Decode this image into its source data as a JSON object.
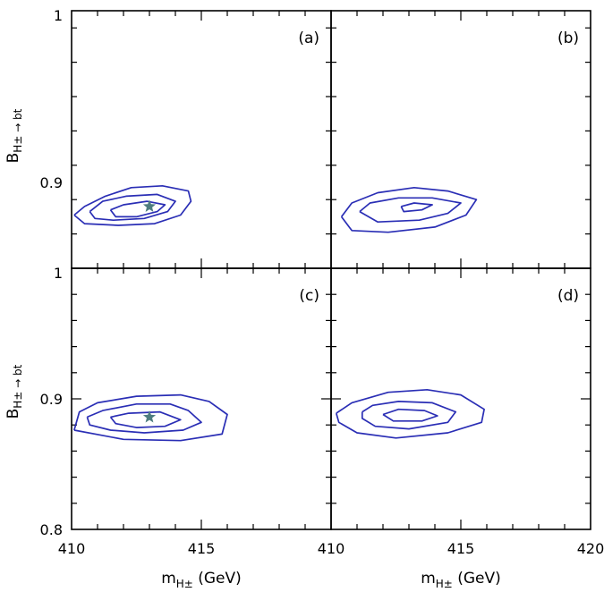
{
  "colors": {
    "contour": "#2a2eb5",
    "star": "#4e7d7f",
    "frame": "#000000"
  },
  "axes": {
    "x_label": "m",
    "x_label_sub": "H±",
    "x_label_unit": "(GeV)",
    "y_label": "B",
    "y_label_sub": "H± → bt"
  },
  "chart_data": [
    {
      "panel": "(a)",
      "type": "contour",
      "xlim": [
        410,
        420
      ],
      "ylim": [
        0.85,
        1.0
      ],
      "yticklabels": [
        "0.9",
        "1"
      ],
      "best_fit": [
        413,
        0.886
      ],
      "contours": [
        [
          [
            410.1,
            0.881
          ],
          [
            410.5,
            0.886
          ],
          [
            411.3,
            0.892
          ],
          [
            412.3,
            0.897
          ],
          [
            413.5,
            0.898
          ],
          [
            414.5,
            0.895
          ],
          [
            414.6,
            0.889
          ],
          [
            414.2,
            0.881
          ],
          [
            413.2,
            0.876
          ],
          [
            411.8,
            0.875
          ],
          [
            410.5,
            0.876
          ],
          [
            410.1,
            0.881
          ]
        ],
        [
          [
            410.7,
            0.883
          ],
          [
            411.2,
            0.889
          ],
          [
            412.1,
            0.892
          ],
          [
            413.3,
            0.893
          ],
          [
            414.0,
            0.889
          ],
          [
            413.7,
            0.883
          ],
          [
            412.8,
            0.879
          ],
          [
            411.6,
            0.878
          ],
          [
            410.9,
            0.879
          ],
          [
            410.7,
            0.883
          ]
        ],
        [
          [
            411.5,
            0.884
          ],
          [
            412.0,
            0.887
          ],
          [
            412.9,
            0.889
          ],
          [
            413.6,
            0.887
          ],
          [
            413.3,
            0.883
          ],
          [
            412.5,
            0.88
          ],
          [
            411.7,
            0.88
          ],
          [
            411.5,
            0.884
          ]
        ]
      ]
    },
    {
      "panel": "(b)",
      "type": "contour",
      "xlim": [
        410,
        420
      ],
      "ylim": [
        0.85,
        1.0
      ],
      "yticklabels": [],
      "contours": [
        [
          [
            410.4,
            0.88
          ],
          [
            410.8,
            0.888
          ],
          [
            411.8,
            0.894
          ],
          [
            413.2,
            0.897
          ],
          [
            414.5,
            0.895
          ],
          [
            415.6,
            0.89
          ],
          [
            415.2,
            0.881
          ],
          [
            414.0,
            0.874
          ],
          [
            412.2,
            0.871
          ],
          [
            410.8,
            0.872
          ],
          [
            410.4,
            0.88
          ]
        ],
        [
          [
            411.1,
            0.883
          ],
          [
            411.5,
            0.888
          ],
          [
            412.6,
            0.891
          ],
          [
            413.9,
            0.891
          ],
          [
            415.0,
            0.888
          ],
          [
            414.5,
            0.882
          ],
          [
            413.4,
            0.878
          ],
          [
            411.8,
            0.877
          ],
          [
            411.1,
            0.883
          ]
        ],
        [
          [
            412.7,
            0.886
          ],
          [
            413.2,
            0.888
          ],
          [
            413.9,
            0.887
          ],
          [
            413.5,
            0.884
          ],
          [
            412.8,
            0.883
          ],
          [
            412.7,
            0.886
          ]
        ]
      ]
    },
    {
      "panel": "(c)",
      "type": "contour",
      "xlim": [
        410,
        420
      ],
      "ylim": [
        0.8,
        1.0
      ],
      "yticklabels": [
        "0.8",
        "0.9",
        "1"
      ],
      "best_fit": [
        413,
        0.886
      ],
      "contours": [
        [
          [
            410.1,
            0.876
          ],
          [
            410.3,
            0.89
          ],
          [
            411.0,
            0.897
          ],
          [
            412.5,
            0.902
          ],
          [
            414.2,
            0.903
          ],
          [
            415.3,
            0.898
          ],
          [
            416.0,
            0.888
          ],
          [
            415.8,
            0.873
          ],
          [
            414.2,
            0.868
          ],
          [
            412.0,
            0.869
          ],
          [
            410.1,
            0.876
          ]
        ],
        [
          [
            410.6,
            0.886
          ],
          [
            411.2,
            0.891
          ],
          [
            412.5,
            0.896
          ],
          [
            413.8,
            0.896
          ],
          [
            414.5,
            0.891
          ],
          [
            415.0,
            0.882
          ],
          [
            414.3,
            0.876
          ],
          [
            412.8,
            0.874
          ],
          [
            411.5,
            0.876
          ],
          [
            410.7,
            0.88
          ],
          [
            410.6,
            0.886
          ]
        ],
        [
          [
            411.5,
            0.886
          ],
          [
            412.2,
            0.889
          ],
          [
            413.4,
            0.89
          ],
          [
            414.2,
            0.884
          ],
          [
            413.6,
            0.879
          ],
          [
            412.5,
            0.878
          ],
          [
            411.7,
            0.881
          ],
          [
            411.5,
            0.886
          ]
        ]
      ]
    },
    {
      "panel": "(d)",
      "type": "contour",
      "xlim": [
        410,
        420
      ],
      "ylim": [
        0.8,
        1.0
      ],
      "yticklabels": [],
      "xticklabels": [
        "410",
        "415",
        "420"
      ],
      "contours": [
        [
          [
            410.2,
            0.889
          ],
          [
            410.8,
            0.897
          ],
          [
            412.2,
            0.905
          ],
          [
            413.7,
            0.907
          ],
          [
            415.0,
            0.903
          ],
          [
            415.9,
            0.892
          ],
          [
            415.8,
            0.882
          ],
          [
            414.5,
            0.874
          ],
          [
            412.5,
            0.87
          ],
          [
            411.0,
            0.874
          ],
          [
            410.3,
            0.882
          ],
          [
            410.2,
            0.889
          ]
        ],
        [
          [
            411.2,
            0.89
          ],
          [
            411.6,
            0.895
          ],
          [
            412.6,
            0.898
          ],
          [
            413.9,
            0.897
          ],
          [
            414.8,
            0.89
          ],
          [
            414.5,
            0.882
          ],
          [
            413.0,
            0.877
          ],
          [
            411.7,
            0.879
          ],
          [
            411.2,
            0.885
          ],
          [
            411.2,
            0.89
          ]
        ],
        [
          [
            412.0,
            0.888
          ],
          [
            412.6,
            0.892
          ],
          [
            413.6,
            0.891
          ],
          [
            414.1,
            0.887
          ],
          [
            413.5,
            0.883
          ],
          [
            412.4,
            0.883
          ],
          [
            412.0,
            0.888
          ]
        ]
      ]
    }
  ],
  "shared_xticklabels_left": [
    "410",
    "415"
  ]
}
